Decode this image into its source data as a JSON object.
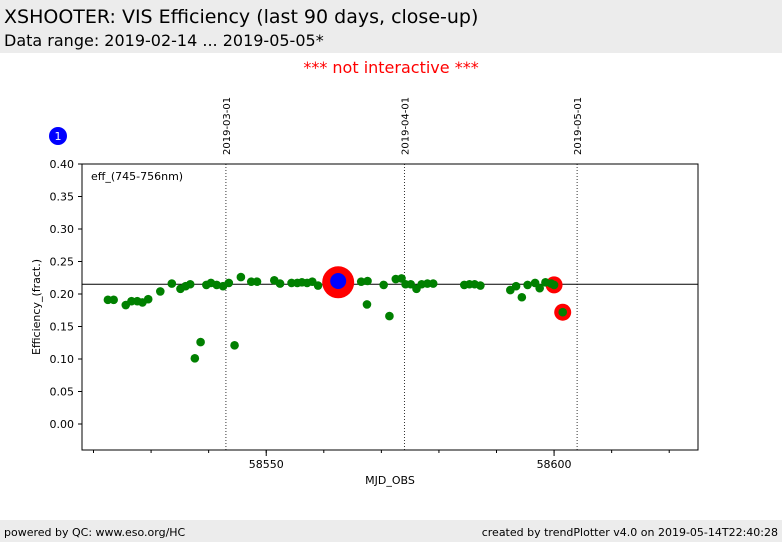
{
  "header": {
    "title": "XSHOOTER: VIS Efficiency (last 90 days, close-up)",
    "subtitle": "Data range: 2019-02-14 ... 2019-05-05*"
  },
  "notice": "*** not interactive ***",
  "footer": {
    "left": "powered by QC: www.eso.org/HC",
    "right": "created by trendPlotter v4.0 on 2019-05-14T22:40:28"
  },
  "colors": {
    "header_bg": "#ececec",
    "notice": "#ff0000",
    "data_points": "#008000",
    "highlight_ring": "#ff0000",
    "latest_point": "#0000ff"
  },
  "chart_data": {
    "type": "scatter",
    "xlabel": "MJD_OBS",
    "ylabel": "Efficiency_(fract.)",
    "annotation": "eff_(745-756nm)",
    "marker_badge": "1",
    "xlim": [
      58518,
      58625
    ],
    "ylim": [
      -0.04,
      0.4
    ],
    "x_ticks": [
      58550,
      58600
    ],
    "y_ticks": [
      "0.00",
      "0.05",
      "0.10",
      "0.15",
      "0.20",
      "0.25",
      "0.30",
      "0.35",
      "0.40"
    ],
    "reference_line": 0.215,
    "date_markers": [
      {
        "mjd": 58543,
        "label": "2019-03-01"
      },
      {
        "mjd": 58574,
        "label": "2019-04-01"
      },
      {
        "mjd": 58604,
        "label": "2019-05-01"
      }
    ],
    "series": [
      {
        "points": [
          [
            58522.5,
            0.191
          ],
          [
            58523.5,
            0.191
          ],
          [
            58525.6,
            0.183
          ],
          [
            58526.6,
            0.189
          ],
          [
            58527.6,
            0.189
          ],
          [
            58528.5,
            0.187
          ],
          [
            58529.5,
            0.192
          ],
          [
            58531.6,
            0.204
          ],
          [
            58533.6,
            0.216
          ],
          [
            58535.1,
            0.208
          ],
          [
            58536,
            0.212
          ],
          [
            58536.8,
            0.215
          ],
          [
            58537.6,
            0.101
          ],
          [
            58538.6,
            0.126
          ],
          [
            58539.6,
            0.214
          ],
          [
            58540.4,
            0.217
          ],
          [
            58541.4,
            0.214
          ],
          [
            58542.5,
            0.212
          ],
          [
            58543.5,
            0.217
          ],
          [
            58544.5,
            0.121
          ],
          [
            58545.6,
            0.226
          ],
          [
            58547.4,
            0.219
          ],
          [
            58548.4,
            0.219
          ],
          [
            58551.4,
            0.221
          ],
          [
            58552.4,
            0.216
          ],
          [
            58554.4,
            0.217
          ],
          [
            58555.4,
            0.217
          ],
          [
            58556.2,
            0.218
          ],
          [
            58557.1,
            0.217
          ],
          [
            58558,
            0.219
          ],
          [
            58559,
            0.213
          ],
          [
            58566.5,
            0.219
          ],
          [
            58567.5,
            0.184
          ],
          [
            58567.6,
            0.22
          ],
          [
            58570.4,
            0.214
          ],
          [
            58571.4,
            0.166
          ],
          [
            58572.5,
            0.223
          ],
          [
            58573.5,
            0.224
          ],
          [
            58574.2,
            0.215
          ],
          [
            58575.1,
            0.215
          ],
          [
            58576.1,
            0.208
          ],
          [
            58577,
            0.215
          ],
          [
            58578,
            0.216
          ],
          [
            58579,
            0.216
          ],
          [
            58584.4,
            0.214
          ],
          [
            58585.3,
            0.215
          ],
          [
            58586.2,
            0.215
          ],
          [
            58587.2,
            0.213
          ],
          [
            58592.4,
            0.206
          ],
          [
            58593.4,
            0.212
          ],
          [
            58594.4,
            0.195
          ],
          [
            58595.4,
            0.214
          ],
          [
            58596.7,
            0.217
          ],
          [
            58597.5,
            0.209
          ],
          [
            58598.5,
            0.218
          ],
          [
            58599.5,
            0.216
          ],
          [
            58600,
            0.214
          ],
          [
            58601.5,
            0.172
          ],
          [
            58562.5,
            0.218
          ]
        ]
      }
    ],
    "highlighted": [
      {
        "x": 58562.5,
        "y": 0.218,
        "size": "large"
      },
      {
        "x": 58600,
        "y": 0.214,
        "size": "small"
      },
      {
        "x": 58601.5,
        "y": 0.172,
        "size": "small"
      }
    ],
    "latest": {
      "x": 58562.5,
      "y": 0.22
    }
  }
}
